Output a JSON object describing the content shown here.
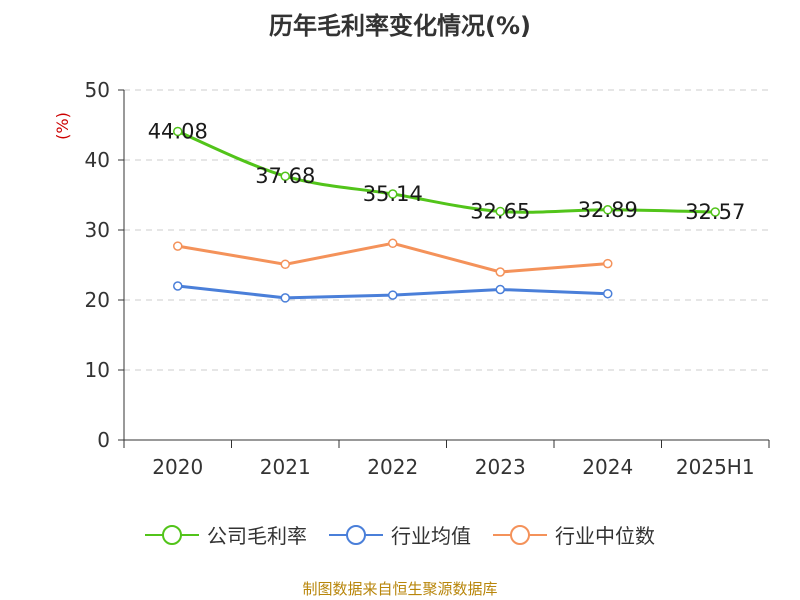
{
  "chart_data": {
    "type": "line",
    "title": "历年毛利率变化情况(%)",
    "ylabel": "(%)",
    "ylim": [
      0,
      50
    ],
    "yticks": [
      "0",
      "10",
      "20",
      "30",
      "40",
      "50"
    ],
    "categories": [
      "2020",
      "2021",
      "2022",
      "2023",
      "2024",
      "2025H1"
    ],
    "grid": true,
    "legend_position": "bottom",
    "series": [
      {
        "name": "公司毛利率",
        "color": "#52c41a",
        "values": [
          44.08,
          37.68,
          35.14,
          32.65,
          32.89,
          32.57
        ],
        "labels": [
          "44.08",
          "37.68",
          "35.14",
          "32.65",
          "32.89",
          "32.57"
        ]
      },
      {
        "name": "行业均值",
        "color": "#4a7fd9",
        "values": [
          22.0,
          20.3,
          20.7,
          21.5,
          20.9,
          null
        ]
      },
      {
        "name": "行业中位数",
        "color": "#f4925a",
        "values": [
          27.7,
          25.1,
          28.1,
          24.0,
          25.2,
          null
        ]
      }
    ]
  },
  "footer": "制图数据来自恒生聚源数据库"
}
